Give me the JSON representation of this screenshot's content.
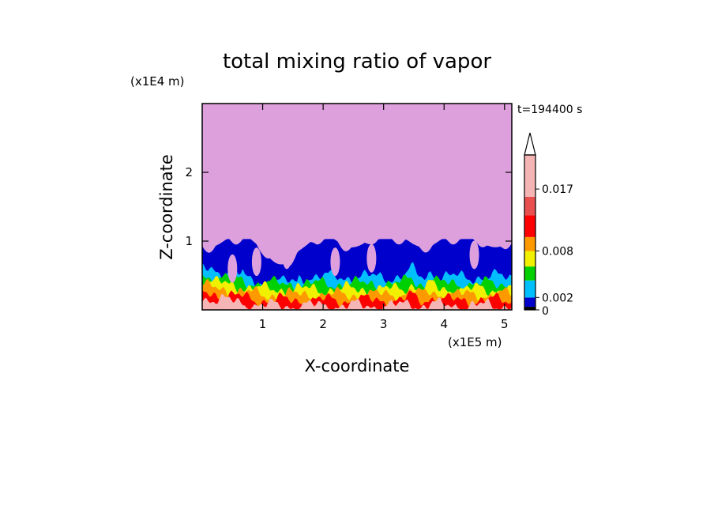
{
  "chart_data": {
    "type": "heatmap",
    "title": "total mixing ratio of vapor",
    "xlabel": "X-coordinate",
    "ylabel": "Z-coordinate",
    "x_unit": "(x1E5 m)",
    "y_unit": "(x1E4 m)",
    "time_label": "t=194400 s",
    "xlim": [
      0,
      5.12
    ],
    "ylim": [
      0,
      3
    ],
    "x_ticks": [
      1,
      2,
      3,
      4,
      5
    ],
    "y_ticks": [
      1,
      2
    ],
    "grid": false,
    "legend": "right colorbar",
    "colorbar": {
      "labels": [
        "0",
        "0.002",
        "0.008",
        "0.017"
      ],
      "levels": [
        0,
        0.001,
        0.002,
        0.004,
        0.006,
        0.008,
        0.01,
        0.012,
        0.014,
        0.017,
        0.02
      ],
      "colors": [
        "#000000",
        "#0000cd",
        "#00bfff",
        "#00d000",
        "#f0f000",
        "#ff9900",
        "#ff0000",
        "#e85050",
        "#f5b5b5"
      ],
      "extend": "max"
    },
    "field": {
      "upper_region_color": "#dda0dd",
      "top_boundary": 1.03,
      "bands": [
        {
          "color": "#0000cd",
          "base_height": 0.95
        },
        {
          "color": "#00bfff",
          "base_height": 0.48
        },
        {
          "color": "#00d000",
          "base_height": 0.38
        },
        {
          "color": "#f0f000",
          "base_height": 0.3
        },
        {
          "color": "#ff9900",
          "base_height": 0.22
        },
        {
          "color": "#ff0000",
          "base_height": 0.14
        },
        {
          "color": "#f5b5b5",
          "base_height": 0.06
        }
      ]
    }
  }
}
